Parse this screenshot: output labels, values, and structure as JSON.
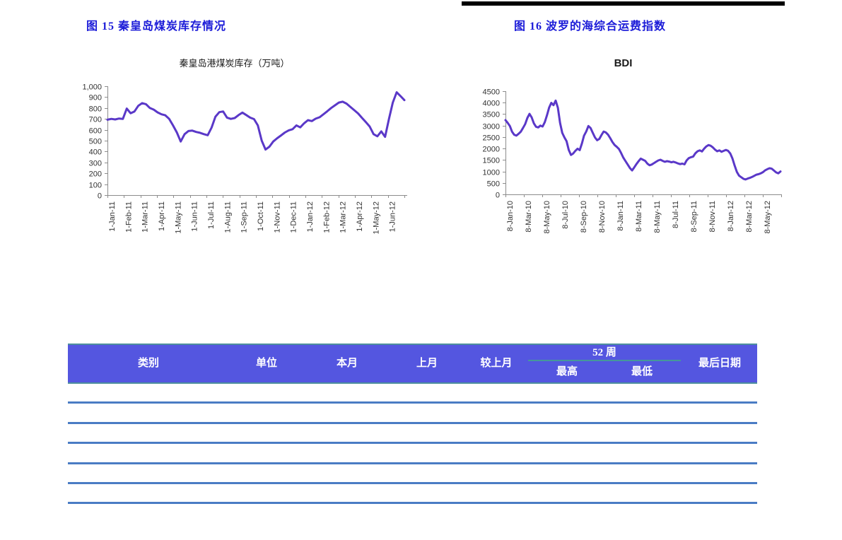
{
  "figures": {
    "left": {
      "caption": "图  15  秦皇岛煤炭库存情况"
    },
    "right": {
      "caption": "图 16  波罗的海综合运费指数"
    }
  },
  "chart_data": [
    {
      "type": "line",
      "title": "秦皇岛港煤炭库存（万吨）",
      "xlabel": "",
      "ylabel": "",
      "ylim": [
        0,
        1000
      ],
      "ytick_step": 100,
      "ytick_labels": [
        "0",
        "100",
        "200",
        "300",
        "400",
        "500",
        "600",
        "700",
        "800",
        "900",
        "1,000"
      ],
      "x_tick_labels": [
        "1-Jan-11",
        "1-Feb-11",
        "1-Mar-11",
        "1-Apr-11",
        "1-May-11",
        "1-Jun-11",
        "1-Jul-11",
        "1-Aug-11",
        "1-Sep-11",
        "1-Oct-11",
        "1-Nov-11",
        "1-Dec-11",
        "1-Jan-12",
        "1-Feb-12",
        "1-Mar-12",
        "1-Apr-12",
        "1-May-12",
        "1-Jun-12"
      ],
      "values": [
        692,
        700,
        695,
        703,
        700,
        795,
        752,
        768,
        820,
        845,
        835,
        800,
        785,
        760,
        742,
        733,
        700,
        640,
        575,
        492,
        560,
        588,
        592,
        580,
        572,
        560,
        550,
        620,
        720,
        762,
        768,
        712,
        700,
        708,
        735,
        758,
        735,
        712,
        698,
        640,
        500,
        418,
        445,
        492,
        522,
        548,
        575,
        595,
        605,
        640,
        622,
        660,
        688,
        680,
        702,
        715,
        742,
        770,
        800,
        825,
        850,
        858,
        840,
        810,
        780,
        750,
        710,
        670,
        630,
        560,
        540,
        585,
        535,
        700,
        850,
        945,
        910,
        872
      ],
      "grid": false,
      "legend": "none",
      "line_color": "#5a38c8",
      "axis_color": "#8c8c8c",
      "tick_text_color": "#333333"
    },
    {
      "type": "line",
      "title": "BDI",
      "xlabel": "",
      "ylabel": "",
      "ylim": [
        0,
        4500
      ],
      "ytick_step": 500,
      "ytick_labels": [
        "0",
        "500",
        "1000",
        "1500",
        "2000",
        "2500",
        "3000",
        "3500",
        "4000",
        "4500"
      ],
      "x_tick_labels": [
        "8-Jan-10",
        "8-Mar-10",
        "8-May-10",
        "8-Jul-10",
        "8-Sep-10",
        "8-Nov-10",
        "8-Jan-11",
        "8-Mar-11",
        "8-May-11",
        "8-Jul-11",
        "8-Sep-11",
        "8-Nov-11",
        "8-Jan-12",
        "8-Mar-12",
        "8-May-12"
      ],
      "values": [
        3240,
        3120,
        2980,
        2730,
        2600,
        2560,
        2640,
        2730,
        2890,
        3060,
        3330,
        3510,
        3360,
        3100,
        2950,
        2920,
        3000,
        2960,
        3150,
        3450,
        3780,
        3990,
        3890,
        4090,
        3780,
        3120,
        2680,
        2480,
        2320,
        1940,
        1720,
        1780,
        1900,
        1990,
        1930,
        2220,
        2560,
        2740,
        2980,
        2890,
        2680,
        2480,
        2360,
        2420,
        2590,
        2740,
        2700,
        2600,
        2450,
        2280,
        2150,
        2070,
        1980,
        1800,
        1600,
        1450,
        1300,
        1150,
        1045,
        1180,
        1320,
        1450,
        1560,
        1510,
        1460,
        1340,
        1270,
        1300,
        1360,
        1420,
        1480,
        1510,
        1460,
        1420,
        1450,
        1430,
        1400,
        1420,
        1390,
        1350,
        1320,
        1340,
        1310,
        1480,
        1580,
        1620,
        1650,
        1790,
        1880,
        1920,
        1870,
        1990,
        2090,
        2150,
        2120,
        2050,
        1950,
        1880,
        1920,
        1860,
        1900,
        1940,
        1900,
        1780,
        1560,
        1250,
        980,
        820,
        750,
        680,
        650,
        690,
        720,
        760,
        810,
        860,
        880,
        920,
        970,
        1050,
        1100,
        1140,
        1120,
        1040,
        960,
        920,
        1000
      ],
      "grid": false,
      "legend": "none",
      "line_color": "#5a38c8",
      "axis_color": "#8c8c8c",
      "tick_text_color": "#333333"
    }
  ],
  "table": {
    "columns": [
      {
        "label": "类别"
      },
      {
        "label": "单位"
      },
      {
        "label": "本月"
      },
      {
        "label": "上月"
      },
      {
        "label": "较上月"
      },
      {
        "label": "最后日期"
      }
    ],
    "group": {
      "label": "52 周",
      "sub": [
        "最高",
        "最低"
      ]
    },
    "empty_rows": 6,
    "header_bg": "#5456e0",
    "header_border_color": "#4e8f9e",
    "row_line_color": "#4a7cc4"
  }
}
